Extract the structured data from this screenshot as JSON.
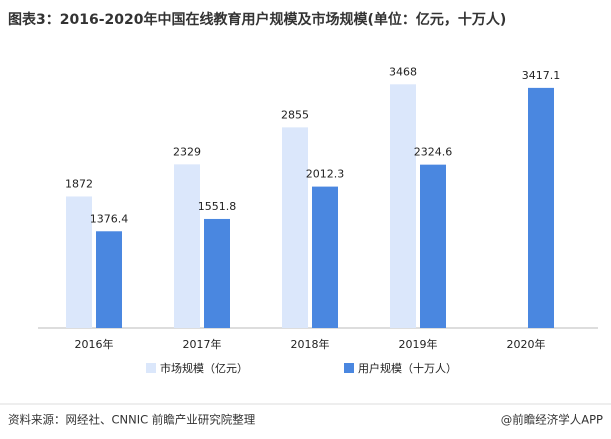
{
  "chart_data": {
    "type": "bar",
    "title": "图表3：2016-2020年中国在线教育用户规模及市场规模(单位：亿元，十万人)",
    "categories": [
      "2016年",
      "2017年",
      "2018年",
      "2019年",
      "2020年"
    ],
    "series": [
      {
        "name": "市场规模（亿元）",
        "color": "#dbe7fb",
        "values": [
          1872,
          2329,
          2855,
          3468,
          null
        ]
      },
      {
        "name": "用户规模（十万人）",
        "color": "#4a87e0",
        "values": [
          1376.4,
          1551.8,
          2012.3,
          2324.6,
          3417.1
        ]
      }
    ],
    "ylim": [
      0,
      3700
    ],
    "source": "资料来源：网经社、CNNIC 前瞻产业研究院整理",
    "credit": "@前瞻经济学人APP"
  }
}
